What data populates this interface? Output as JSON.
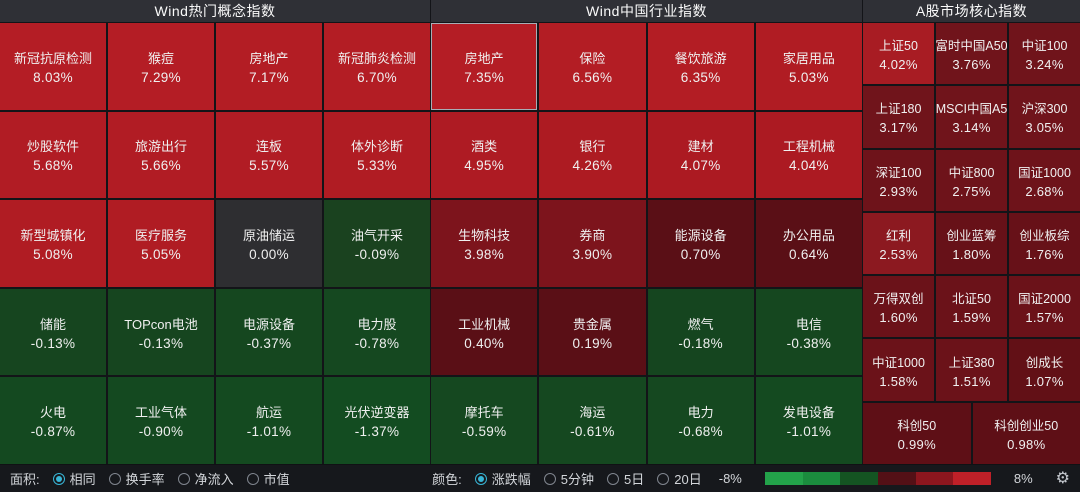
{
  "panels": [
    {
      "title": "Wind热门概念指数",
      "columns": 4,
      "cells": [
        {
          "n": "新冠抗原检测",
          "v": "8.03%",
          "c": "#b41d25"
        },
        {
          "n": "猴痘",
          "v": "7.29%",
          "c": "#b41d25"
        },
        {
          "n": "房地产",
          "v": "7.17%",
          "c": "#b31d24"
        },
        {
          "n": "新冠肺炎检测",
          "v": "6.70%",
          "c": "#b31d24"
        },
        {
          "n": "炒股软件",
          "v": "5.68%",
          "c": "#b11c24"
        },
        {
          "n": "旅游出行",
          "v": "5.66%",
          "c": "#b11c24"
        },
        {
          "n": "连板",
          "v": "5.57%",
          "c": "#b11c24"
        },
        {
          "n": "体外诊断",
          "v": "5.33%",
          "c": "#b01c23"
        },
        {
          "n": "新型城镇化",
          "v": "5.08%",
          "c": "#b01c23"
        },
        {
          "n": "医疗服务",
          "v": "5.05%",
          "c": "#b01c23"
        },
        {
          "n": "原油储运",
          "v": "0.00%",
          "c": "#2e2e31"
        },
        {
          "n": "油气开采",
          "v": "-0.09%",
          "c": "#1a421f"
        },
        {
          "n": "储能",
          "v": "-0.13%",
          "c": "#16451f"
        },
        {
          "n": "TOPcon电池",
          "v": "-0.13%",
          "c": "#16451f"
        },
        {
          "n": "电源设备",
          "v": "-0.37%",
          "c": "#15471f"
        },
        {
          "n": "电力股",
          "v": "-0.78%",
          "c": "#154820"
        },
        {
          "n": "火电",
          "v": "-0.87%",
          "c": "#144920"
        },
        {
          "n": "工业气体",
          "v": "-0.90%",
          "c": "#144920"
        },
        {
          "n": "航运",
          "v": "-1.01%",
          "c": "#144a20"
        },
        {
          "n": "光伏逆变器",
          "v": "-1.37%",
          "c": "#134c21"
        }
      ]
    },
    {
      "title": "Wind中国行业指数",
      "columns": 4,
      "cells": [
        {
          "n": "房地产",
          "v": "7.35%",
          "c": "#b41d25",
          "selected": true
        },
        {
          "n": "保险",
          "v": "6.56%",
          "c": "#b31d24"
        },
        {
          "n": "餐饮旅游",
          "v": "6.35%",
          "c": "#b31d24"
        },
        {
          "n": "家居用品",
          "v": "5.03%",
          "c": "#b01c23"
        },
        {
          "n": "酒类",
          "v": "4.95%",
          "c": "#ae1b23"
        },
        {
          "n": "银行",
          "v": "4.26%",
          "c": "#ad1b22"
        },
        {
          "n": "建材",
          "v": "4.07%",
          "c": "#ac1a22"
        },
        {
          "n": "工程机械",
          "v": "4.04%",
          "c": "#ac1a22"
        },
        {
          "n": "生物科技",
          "v": "3.98%",
          "c": "#7d141c"
        },
        {
          "n": "券商",
          "v": "3.90%",
          "c": "#7d141c"
        },
        {
          "n": "能源设备",
          "v": "0.70%",
          "c": "#5a0f16"
        },
        {
          "n": "办公用品",
          "v": "0.64%",
          "c": "#5a0f16"
        },
        {
          "n": "工业机械",
          "v": "0.40%",
          "c": "#5a0f16"
        },
        {
          "n": "贵金属",
          "v": "0.19%",
          "c": "#5a0f16"
        },
        {
          "n": "燃气",
          "v": "-0.18%",
          "c": "#15451f"
        },
        {
          "n": "电信",
          "v": "-0.38%",
          "c": "#15471f"
        },
        {
          "n": "摩托车",
          "v": "-0.59%",
          "c": "#154820"
        },
        {
          "n": "海运",
          "v": "-0.61%",
          "c": "#154820"
        },
        {
          "n": "电力",
          "v": "-0.68%",
          "c": "#154820"
        },
        {
          "n": "发电设备",
          "v": "-1.01%",
          "c": "#144a20"
        }
      ]
    },
    {
      "title": "A股市场核心指数",
      "columns": 3,
      "cells": [
        {
          "n": "上证50",
          "v": "4.02%",
          "c": "#a81c23"
        },
        {
          "n": "富时中国A50",
          "v": "3.76%",
          "c": "#70141b"
        },
        {
          "n": "中证100",
          "v": "3.24%",
          "c": "#70141b"
        },
        {
          "n": "上证180",
          "v": "3.17%",
          "c": "#70141b"
        },
        {
          "n": "MSCI中国A5",
          "v": "3.14%",
          "c": "#70141b"
        },
        {
          "n": "沪深300",
          "v": "3.05%",
          "c": "#70141b"
        },
        {
          "n": "深证100",
          "v": "2.93%",
          "c": "#6e131a"
        },
        {
          "n": "中证800",
          "v": "2.75%",
          "c": "#6e131a"
        },
        {
          "n": "国证1000",
          "v": "2.68%",
          "c": "#6e131a"
        },
        {
          "n": "红利",
          "v": "2.53%",
          "c": "#8c1920"
        },
        {
          "n": "创业蓝筹",
          "v": "1.80%",
          "c": "#671118"
        },
        {
          "n": "创业板综",
          "v": "1.76%",
          "c": "#671118"
        },
        {
          "n": "万得双创",
          "v": "1.60%",
          "c": "#6b1219"
        },
        {
          "n": "北证50",
          "v": "1.59%",
          "c": "#6b1219"
        },
        {
          "n": "国证2000",
          "v": "1.57%",
          "c": "#6b1219"
        },
        {
          "n": "中证1000",
          "v": "1.58%",
          "c": "#6b1219"
        },
        {
          "n": "上证380",
          "v": "1.51%",
          "c": "#6b1219"
        },
        {
          "n": "创成长",
          "v": "1.07%",
          "c": "#621016"
        },
        {
          "n": "科创50",
          "v": "0.99%",
          "c": "#5e0f16",
          "wide": true
        },
        {
          "n": "科创创业50",
          "v": "0.98%",
          "c": "#5e0f16",
          "wide": true
        }
      ]
    }
  ],
  "footer": {
    "area_label": "面积:",
    "area_options": [
      {
        "label": "相同",
        "selected": true
      },
      {
        "label": "换手率",
        "selected": false
      },
      {
        "label": "净流入",
        "selected": false
      },
      {
        "label": "市值",
        "selected": false
      }
    ],
    "color_label": "颜色:",
    "color_options": [
      {
        "label": "涨跌幅",
        "selected": true
      },
      {
        "label": "5分钟",
        "selected": false
      },
      {
        "label": "5日",
        "selected": false
      },
      {
        "label": "20日",
        "selected": false
      }
    ],
    "scale_min": "-8%",
    "scale_max": "8%",
    "gradient_colors": [
      "#23a24a",
      "#1b8c3e",
      "#145422",
      "#531016",
      "#8c161e",
      "#bf2028"
    ],
    "gear_icon": "⚙",
    "accent_color": "#38b6d7"
  }
}
